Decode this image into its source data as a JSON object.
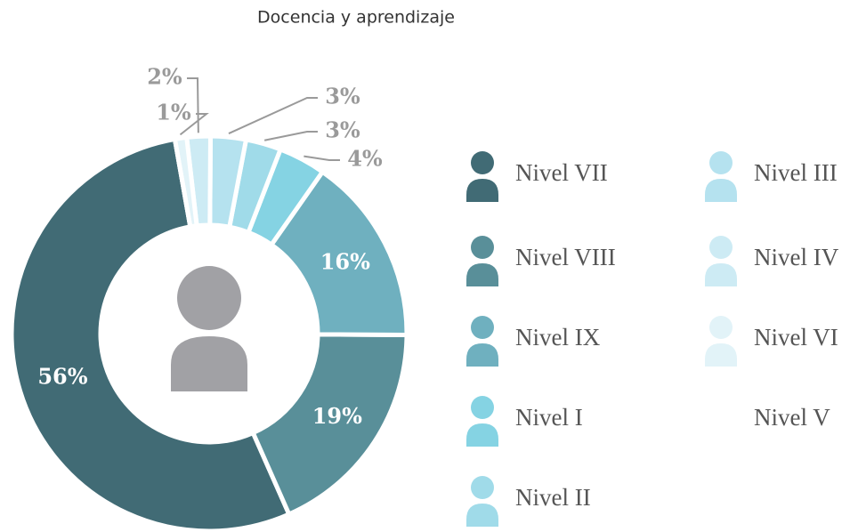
{
  "chart_data": {
    "type": "donut",
    "title": "Docencia y aprendizaje",
    "categories": [
      "Nivel VII",
      "Nivel VIII",
      "Nivel IX",
      "Nivel I",
      "Nivel II",
      "Nivel III",
      "Nivel IV",
      "Nivel VI",
      "Nivel V"
    ],
    "values": [
      56,
      19,
      16,
      4,
      3,
      3,
      2,
      1,
      0
    ],
    "value_labels": [
      "56%",
      "19%",
      "16%",
      "4%",
      "3%",
      "3%",
      "2%",
      "1%",
      null
    ],
    "colors": [
      "#416b75",
      "#598f99",
      "#6fb0bf",
      "#85d3e3",
      "#a0dbe9",
      "#b5e2ef",
      "#cdebf4",
      "#e2f3f8",
      "#ffffff"
    ],
    "legend": "right"
  }
}
